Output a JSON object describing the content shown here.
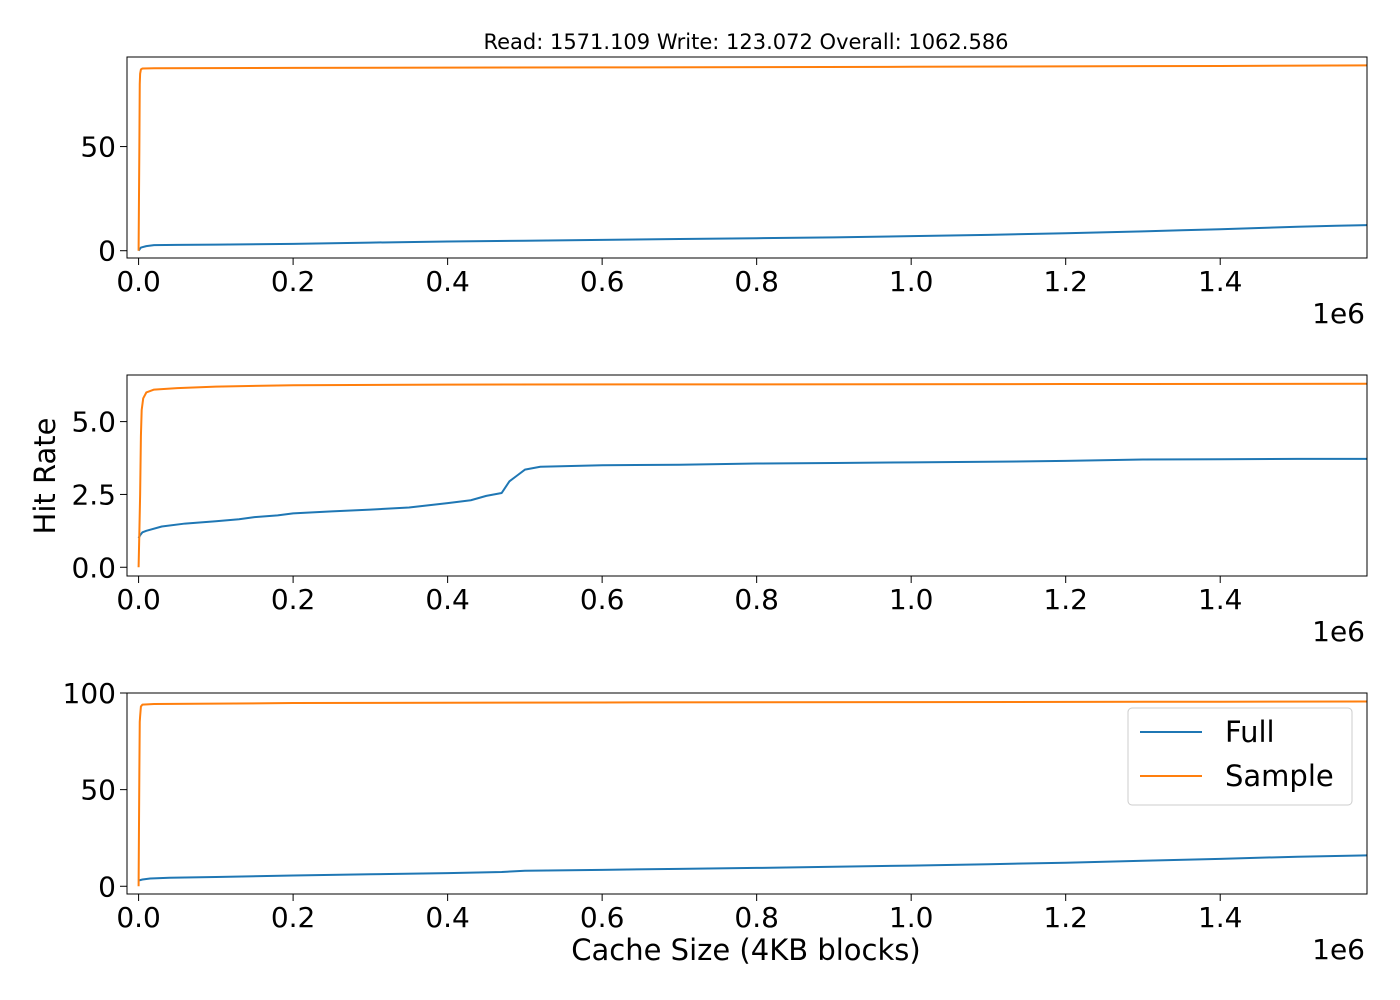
{
  "chart_data": [
    {
      "type": "line",
      "title": "Read: 1571.109 Write: 123.072 Overall: 1062.586",
      "xlabel": "",
      "ylabel": "",
      "x_offset_text": "1e6",
      "xlim": [
        -15000,
        1590000
      ],
      "ylim": [
        -3.5,
        93
      ],
      "xticks": [
        0.0,
        0.2,
        0.4,
        0.6,
        0.8,
        1.0,
        1.2,
        1.4
      ],
      "xtick_labels": [
        "0.0",
        "0.2",
        "0.4",
        "0.6",
        "0.8",
        "1.0",
        "1.2",
        "1.4"
      ],
      "yticks": [
        0,
        50
      ],
      "ytick_labels": [
        "0",
        "50"
      ],
      "grid": false,
      "legend": null,
      "series": [
        {
          "color": "#1f77b4",
          "x": [
            0,
            3000,
            10000,
            20000,
            50000,
            100000,
            200000,
            300000,
            400000,
            500000,
            600000,
            700000,
            800000,
            900000,
            1000000,
            1100000,
            1200000,
            1300000,
            1350000,
            1400000,
            1450000,
            1500000,
            1550000,
            1590000
          ],
          "y": [
            0,
            1.5,
            2.2,
            2.7,
            2.8,
            2.9,
            3.3,
            3.9,
            4.4,
            4.8,
            5.2,
            5.6,
            6.0,
            6.4,
            7.0,
            7.6,
            8.4,
            9.3,
            9.8,
            10.3,
            10.9,
            11.5,
            12.0,
            12.3
          ]
        },
        {
          "color": "#ff7f0e",
          "x": [
            0,
            1000,
            1500,
            2000,
            2500,
            3000,
            5000,
            20000,
            200000,
            600000,
            1000000,
            1400000,
            1590000
          ],
          "y": [
            0,
            50,
            80,
            85,
            86,
            87,
            87.5,
            87.6,
            87.8,
            88.0,
            88.3,
            88.7,
            89.0
          ]
        }
      ]
    },
    {
      "type": "line",
      "title": "",
      "xlabel": "",
      "ylabel": "Hit Rate",
      "x_offset_text": "1e6",
      "xlim": [
        -15000,
        1590000
      ],
      "ylim": [
        -0.3,
        6.6
      ],
      "xticks": [
        0.0,
        0.2,
        0.4,
        0.6,
        0.8,
        1.0,
        1.2,
        1.4
      ],
      "xtick_labels": [
        "0.0",
        "0.2",
        "0.4",
        "0.6",
        "0.8",
        "1.0",
        "1.2",
        "1.4"
      ],
      "yticks": [
        0.0,
        2.5,
        5.0
      ],
      "ytick_labels": [
        "0.0",
        "2.5",
        "5.0"
      ],
      "grid": false,
      "legend": null,
      "series": [
        {
          "color": "#1f77b4",
          "x": [
            0,
            2000,
            5000,
            10000,
            30000,
            60000,
            100000,
            130000,
            150000,
            180000,
            200000,
            250000,
            300000,
            350000,
            400000,
            430000,
            450000,
            470000,
            480000,
            490000,
            500000,
            520000,
            600000,
            700000,
            800000,
            900000,
            1000000,
            1100000,
            1200000,
            1300000,
            1400000,
            1500000,
            1590000
          ],
          "y": [
            1.0,
            1.1,
            1.2,
            1.25,
            1.4,
            1.5,
            1.58,
            1.65,
            1.72,
            1.78,
            1.85,
            1.92,
            1.98,
            2.05,
            2.2,
            2.3,
            2.45,
            2.55,
            2.95,
            3.15,
            3.35,
            3.45,
            3.5,
            3.52,
            3.56,
            3.58,
            3.6,
            3.62,
            3.65,
            3.7,
            3.71,
            3.72,
            3.72
          ]
        },
        {
          "color": "#ff7f0e",
          "x": [
            0,
            1000,
            2000,
            3000,
            4000,
            6000,
            10000,
            20000,
            50000,
            100000,
            200000,
            400000,
            800000,
            1200000,
            1590000
          ],
          "y": [
            0.0,
            1.2,
            2.5,
            4.5,
            5.4,
            5.8,
            6.0,
            6.1,
            6.15,
            6.2,
            6.25,
            6.27,
            6.28,
            6.29,
            6.3
          ]
        }
      ]
    },
    {
      "type": "line",
      "title": "",
      "xlabel": "Cache Size (4KB blocks)",
      "ylabel": "",
      "x_offset_text": "1e6",
      "xlim": [
        -15000,
        1590000
      ],
      "ylim": [
        -4,
        100
      ],
      "xticks": [
        0.0,
        0.2,
        0.4,
        0.6,
        0.8,
        1.0,
        1.2,
        1.4
      ],
      "xtick_labels": [
        "0.0",
        "0.2",
        "0.4",
        "0.6",
        "0.8",
        "1.0",
        "1.2",
        "1.4"
      ],
      "yticks": [
        0,
        50,
        100
      ],
      "ytick_labels": [
        "0",
        "50",
        "100"
      ],
      "grid": false,
      "legend": {
        "placement": "right",
        "entries": [
          "Full",
          "Sample"
        ]
      },
      "series": [
        {
          "name": "Full",
          "color": "#1f77b4",
          "x": [
            0,
            5000,
            15000,
            40000,
            100000,
            200000,
            300000,
            400000,
            470000,
            500000,
            600000,
            700000,
            800000,
            900000,
            1000000,
            1100000,
            1200000,
            1300000,
            1400000,
            1500000,
            1590000
          ],
          "y": [
            3.0,
            3.5,
            4.0,
            4.4,
            4.8,
            5.6,
            6.2,
            6.8,
            7.4,
            8.0,
            8.5,
            9.0,
            9.5,
            10.1,
            10.7,
            11.4,
            12.2,
            13.2,
            14.2,
            15.3,
            16.0
          ]
        },
        {
          "name": "Sample",
          "color": "#ff7f0e",
          "x": [
            0,
            1000,
            1500,
            2000,
            3000,
            5000,
            20000,
            200000,
            600000,
            1000000,
            1400000,
            1590000
          ],
          "y": [
            0,
            60,
            85,
            88,
            93,
            94,
            94.3,
            94.8,
            95.1,
            95.3,
            95.5,
            95.6
          ]
        }
      ]
    }
  ]
}
